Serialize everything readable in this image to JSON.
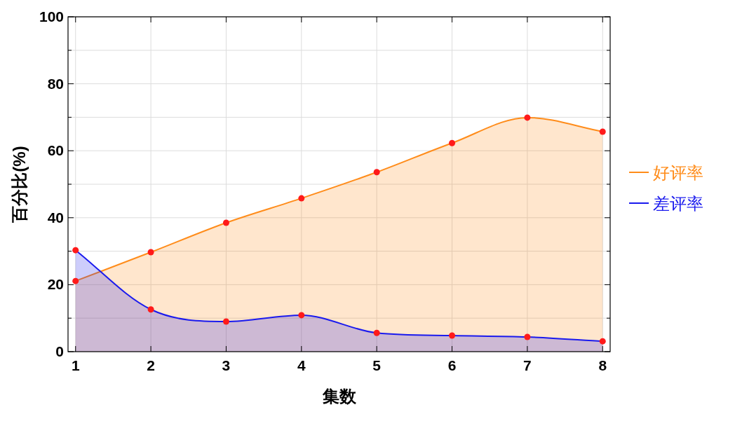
{
  "chart_data": {
    "type": "area",
    "xlabel": "集数",
    "ylabel": "百分比(%)",
    "x": [
      1,
      2,
      3,
      4,
      5,
      6,
      7,
      8
    ],
    "series": [
      {
        "name": "好评率",
        "color": "#ff8c1a",
        "values": [
          21.1,
          29.7,
          38.5,
          45.8,
          53.6,
          62.3,
          69.9,
          65.7
        ]
      },
      {
        "name": "差评率",
        "color": "#1a1aee",
        "values": [
          30.3,
          12.6,
          9.0,
          10.9,
          5.6,
          4.8,
          4.4,
          3.1
        ]
      }
    ],
    "xlim": [
      0.9,
      8.1
    ],
    "ylim": [
      0,
      100
    ],
    "xticks": [
      1,
      2,
      3,
      4,
      5,
      6,
      7,
      8
    ],
    "yticks": [
      0,
      {
        "value": 10,
        "label": null
      },
      20,
      {
        "value": 30,
        "label": null
      },
      40,
      {
        "value": 50,
        "label": null
      },
      60,
      {
        "value": 70,
        "label": null
      },
      80,
      {
        "value": 90,
        "label": null
      },
      100
    ],
    "grid": true,
    "legend": "right",
    "marker": "circle"
  }
}
